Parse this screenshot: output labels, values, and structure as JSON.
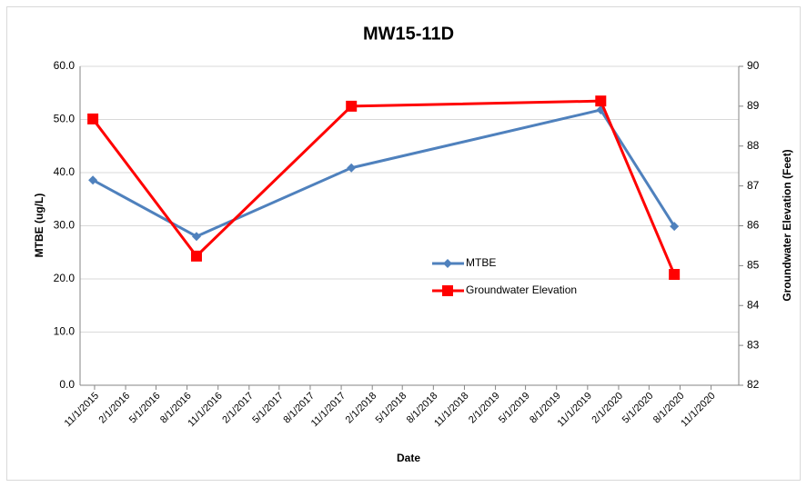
{
  "chart_data": {
    "type": "line",
    "title": "MW15-11D",
    "x_label": "Date",
    "y_label": "MTBE (ug/L)",
    "y2_label": "Groundwater Elevation (Feet)",
    "x": [
      "10/27/2015",
      "8/29/2016",
      "12/1/2017",
      "12/10/2019",
      "7/15/2020"
    ],
    "xlim": [
      "9/19/2015",
      "1/22/2021"
    ],
    "xticks": [
      "11/1/2015",
      "2/1/2016",
      "5/1/2016",
      "8/1/2016",
      "11/1/2016",
      "2/1/2017",
      "5/1/2017",
      "8/1/2017",
      "11/1/2017",
      "2/1/2018",
      "5/1/2018",
      "8/1/2018",
      "11/1/2018",
      "2/1/2019",
      "5/1/2019",
      "8/1/2019",
      "11/1/2019",
      "2/1/2020",
      "5/1/2020",
      "8/1/2020",
      "11/1/2020"
    ],
    "series": [
      {
        "name": "MTBE",
        "color": "#4f81bd",
        "marker": "diamond",
        "values": [
          38.6,
          28.0,
          40.9,
          51.8,
          29.9
        ]
      },
      {
        "name": "Groundwater Elevation",
        "color": "#ff0000",
        "marker": "square",
        "axis": "y2",
        "values": [
          88.68,
          85.24,
          89.0,
          89.13,
          84.78
        ]
      }
    ],
    "ylim": [
      0,
      60
    ],
    "yticks": [
      {
        "value": 0,
        "label": "0.0"
      },
      {
        "value": 10,
        "label": "10.0"
      },
      {
        "value": 20,
        "label": "20.0"
      },
      {
        "value": 30,
        "label": "30.0"
      },
      {
        "value": 40,
        "label": "40.0"
      },
      {
        "value": 50,
        "label": "50.0"
      },
      {
        "value": 60,
        "label": "60.0"
      }
    ],
    "y2lim": [
      82,
      90
    ],
    "y2ticks": [
      82,
      83,
      84,
      85,
      86,
      87,
      88,
      89,
      90
    ],
    "grid": true
  }
}
